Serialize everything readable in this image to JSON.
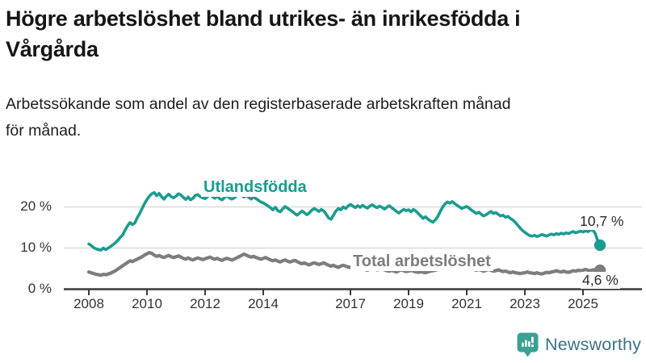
{
  "header": {
    "title_line1": "Högre arbetslöshet bland utrikes- än inrikesfödda i",
    "title_line2": "Vårgårda",
    "subtitle_line1": "Arbetssökande som andel av den registerbaserade arbetskraften månad",
    "subtitle_line2": "för månad."
  },
  "logo": {
    "text": "Newsworthy",
    "icon": "newsworthy-speech-bubble-bar-chart-icon",
    "icon_color": "#3ba092",
    "text_color": "#3f7183"
  },
  "chart_data": {
    "type": "line",
    "title": "Högre arbetslöshet bland utrikes- än inrikesfödda i Vårgårda",
    "xlabel": "",
    "ylabel": "",
    "frequency": "monthly",
    "x_start_year": 2008,
    "ylim": [
      0,
      25
    ],
    "grid": "horizontal",
    "legend_position": "inline-labels",
    "colors": {
      "axis": "#3a3a3a",
      "grid": "#d9d9d9",
      "tick_label": "#333333"
    },
    "x_ticks": [
      {
        "value": 2008,
        "label": "2008"
      },
      {
        "value": 2010,
        "label": "2010"
      },
      {
        "value": 2012,
        "label": "2012"
      },
      {
        "value": 2014,
        "label": "2014"
      },
      {
        "value": 2017,
        "label": "2017"
      },
      {
        "value": 2019,
        "label": "2019"
      },
      {
        "value": 2021,
        "label": "2021"
      },
      {
        "value": 2023,
        "label": "2023"
      },
      {
        "value": 2025,
        "label": "2025"
      }
    ],
    "y_ticks": [
      {
        "value": 0,
        "label": "0 %"
      },
      {
        "value": 10,
        "label": "10 %"
      },
      {
        "value": 20,
        "label": "20 %"
      }
    ],
    "series": [
      {
        "name": "Utlandsfödda",
        "color": "#1b9c8e",
        "line_width": 3.6,
        "end_label": "10,7 %",
        "end_value": 10.7,
        "values": [
          11.0,
          10.6,
          10.1,
          9.8,
          9.6,
          9.5,
          10.0,
          9.6,
          10.0,
          10.4,
          10.8,
          11.3,
          11.9,
          12.6,
          13.2,
          14.4,
          15.4,
          16.2,
          15.7,
          16.1,
          17.4,
          18.4,
          19.6,
          20.8,
          21.8,
          22.6,
          23.2,
          23.5,
          22.7,
          23.3,
          22.5,
          21.9,
          22.6,
          23.1,
          22.5,
          22.2,
          22.6,
          23.2,
          22.9,
          22.3,
          21.8,
          22.4,
          21.7,
          22.1,
          22.8,
          23.0,
          22.5,
          22.2,
          22.0,
          22.5,
          23.0,
          22.5,
          22.1,
          22.6,
          22.0,
          21.7,
          22.3,
          22.7,
          22.2,
          21.9,
          22.2,
          22.7,
          23.3,
          22.9,
          22.4,
          22.8,
          22.3,
          21.9,
          22.4,
          22.0,
          21.6,
          21.2,
          21.0,
          20.6,
          20.2,
          19.8,
          19.3,
          19.9,
          19.1,
          18.8,
          19.5,
          20.1,
          19.7,
          19.3,
          18.9,
          18.4,
          18.0,
          18.5,
          19.0,
          18.6,
          18.1,
          18.5,
          19.2,
          19.6,
          19.3,
          18.9,
          19.4,
          19.0,
          18.2,
          17.3,
          17.0,
          18.0,
          19.0,
          19.6,
          19.3,
          20.0,
          19.6,
          20.2,
          20.6,
          20.2,
          19.8,
          20.3,
          19.9,
          20.4,
          20.0,
          19.7,
          20.2,
          20.5,
          20.1,
          19.8,
          20.2,
          19.9,
          19.5,
          19.9,
          20.3,
          19.8,
          19.4,
          18.9,
          18.5,
          19.0,
          19.4,
          19.1,
          19.3,
          18.8,
          19.4,
          19.0,
          18.4,
          17.8,
          17.2,
          17.6,
          17.0,
          16.6,
          16.3,
          16.8,
          17.6,
          18.8,
          19.9,
          20.7,
          21.2,
          20.9,
          21.3,
          20.8,
          20.4,
          20.0,
          19.6,
          19.9,
          20.1,
          19.7,
          19.2,
          18.8,
          18.4,
          18.7,
          18.2,
          17.8,
          18.1,
          18.5,
          18.9,
          18.4,
          18.6,
          18.2,
          17.8,
          18.0,
          17.5,
          17.7,
          17.2,
          16.8,
          16.3,
          15.6,
          14.9,
          14.3,
          13.8,
          13.4,
          13.0,
          12.9,
          13.1,
          12.8,
          13.0,
          13.3,
          13.1,
          12.9,
          13.2,
          13.4,
          13.2,
          13.5,
          13.3,
          13.6,
          13.4,
          13.7,
          13.5,
          13.8,
          14.0,
          13.7,
          13.9,
          14.1,
          13.9,
          14.2,
          14.0,
          14.3,
          14.5,
          13.6,
          11.9,
          10.7
        ]
      },
      {
        "name": "Total arbetslöshet",
        "color": "#7d7d7d",
        "line_width": 4.2,
        "end_label": "4,6 %",
        "end_value": 4.6,
        "values": [
          4.2,
          4.0,
          3.8,
          3.6,
          3.5,
          3.4,
          3.6,
          3.5,
          3.7,
          3.9,
          4.2,
          4.5,
          4.9,
          5.3,
          5.7,
          6.1,
          6.5,
          6.9,
          6.7,
          7.0,
          7.3,
          7.6,
          7.9,
          8.3,
          8.6,
          8.9,
          8.7,
          8.3,
          8.0,
          8.2,
          7.9,
          7.7,
          8.0,
          8.2,
          7.9,
          7.7,
          7.9,
          8.1,
          7.8,
          7.5,
          7.3,
          7.6,
          7.3,
          7.1,
          7.4,
          7.6,
          7.4,
          7.2,
          7.4,
          7.6,
          7.8,
          7.5,
          7.3,
          7.5,
          7.2,
          7.0,
          7.3,
          7.5,
          7.3,
          7.1,
          7.3,
          7.6,
          7.9,
          8.2,
          8.5,
          8.3,
          8.0,
          7.8,
          8.0,
          7.7,
          7.5,
          7.3,
          7.5,
          7.7,
          7.4,
          7.1,
          6.9,
          7.1,
          6.8,
          6.6,
          6.9,
          7.1,
          6.8,
          6.6,
          6.8,
          7.0,
          6.7,
          6.4,
          6.2,
          6.4,
          6.1,
          5.9,
          6.2,
          6.4,
          6.2,
          6.0,
          6.2,
          6.4,
          6.1,
          5.8,
          5.6,
          5.8,
          5.5,
          5.3,
          5.6,
          5.8,
          5.6,
          5.4,
          5.3,
          5.5,
          5.2,
          5.0,
          4.8,
          5.0,
          4.8,
          4.6,
          4.9,
          5.1,
          4.9,
          4.7,
          4.8,
          5.0,
          4.7,
          4.5,
          4.4,
          4.6,
          4.4,
          4.2,
          4.5,
          4.7,
          4.5,
          4.3,
          4.4,
          4.6,
          4.4,
          4.2,
          4.1,
          4.3,
          4.1,
          4.0,
          4.2,
          4.4,
          4.5,
          4.6,
          4.8,
          5.1,
          5.4,
          5.7,
          5.9,
          5.8,
          5.6,
          5.7,
          5.5,
          5.3,
          5.1,
          5.2,
          5.0,
          5.2,
          5.0,
          4.8,
          4.6,
          4.8,
          4.6,
          4.4,
          4.6,
          4.8,
          4.6,
          4.4,
          4.5,
          4.7,
          4.5,
          4.3,
          4.4,
          4.2,
          4.0,
          4.2,
          4.0,
          3.9,
          3.8,
          3.9,
          4.0,
          4.2,
          4.0,
          3.9,
          3.8,
          4.0,
          3.8,
          3.7,
          3.9,
          4.1,
          4.0,
          4.2,
          4.3,
          4.5,
          4.3,
          4.2,
          4.4,
          4.2,
          4.1,
          4.3,
          4.5,
          4.4,
          4.6,
          4.5,
          4.6,
          4.8,
          4.6,
          4.5,
          4.7,
          4.6,
          4.5,
          4.6
        ]
      }
    ]
  }
}
